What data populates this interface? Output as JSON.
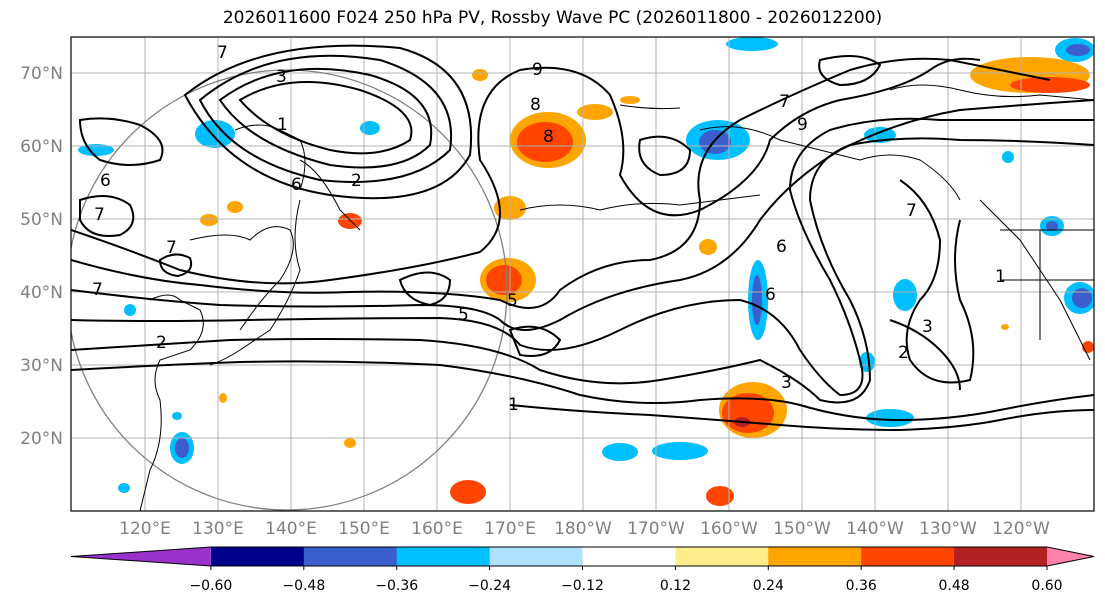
{
  "title": "2026011600 F024 250 hPa PV, Rossby Wave PC (2026011800 - 2026012200)",
  "lat_labels": [
    "70°N",
    "60°N",
    "50°N",
    "40°N",
    "30°N",
    "20°N"
  ],
  "lon_labels": [
    "120°E",
    "130°E",
    "140°E",
    "150°E",
    "160°E",
    "170°E",
    "180°W",
    "170°W",
    "160°W",
    "150°W",
    "140°W",
    "130°W",
    "120°W"
  ],
  "colorbar": {
    "ticks": [
      "−0.60",
      "−0.48",
      "−0.36",
      "−0.24",
      "−0.12",
      "0.12",
      "0.24",
      "0.36",
      "0.48",
      "0.60"
    ],
    "colors": [
      "#9932cc",
      "#00008b",
      "#3a5fcd",
      "#00bfff",
      "#b0e2ff",
      "#ffffff",
      "#ffec8b",
      "#ffa500",
      "#ff4500",
      "#b22222",
      "#ff82ab"
    ]
  },
  "contour_labels": [
    "7",
    "6",
    "3",
    "1",
    "2",
    "6",
    "7",
    "6",
    "7",
    "7",
    "2",
    "5",
    "1",
    "5",
    "9",
    "8",
    "8",
    "7",
    "9",
    "7",
    "6",
    "3",
    "2",
    "3",
    "1"
  ]
}
